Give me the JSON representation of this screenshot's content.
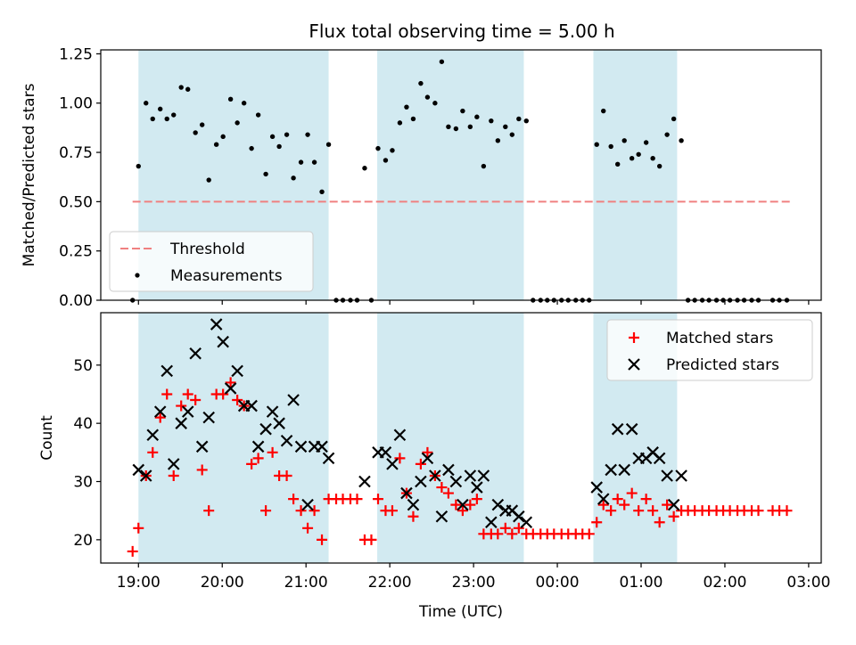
{
  "title": "Flux total observing time = 5.00 h",
  "colors": {
    "band": "#add8e6",
    "threshold": "#f08080",
    "matched": "#ff0000",
    "predicted": "#000000"
  },
  "chart_data": [
    {
      "type": "scatter",
      "panel": "top",
      "title": "Flux total observing time = 5.00 h",
      "xlabel": "",
      "ylabel": "Matched/Predicted stars",
      "xlim": [
        -0.45,
        8.15
      ],
      "ylim": [
        0,
        1.27
      ],
      "yticks": [
        0.0,
        0.25,
        0.5,
        0.75,
        1.0,
        1.25
      ],
      "ytick_labels": [
        "0.00",
        "0.25",
        "0.50",
        "0.75",
        "1.00",
        "1.25"
      ],
      "observing_windows": [
        [
          0.0,
          2.27
        ],
        [
          2.85,
          4.6
        ],
        [
          5.43,
          6.43
        ]
      ],
      "legend": {
        "position": "lower-left",
        "entries": [
          "Threshold",
          "Measurements"
        ]
      },
      "threshold": {
        "name": "Threshold",
        "value": 0.5,
        "x_range": [
          -0.07,
          7.8
        ]
      },
      "series": [
        {
          "name": "Measurements",
          "points": [
            [
              -0.07,
              0.0
            ],
            [
              0.0,
              0.68
            ],
            [
              0.09,
              1.0
            ],
            [
              0.17,
              0.92
            ],
            [
              0.26,
              0.97
            ],
            [
              0.34,
              0.92
            ],
            [
              0.42,
              0.94
            ],
            [
              0.51,
              1.08
            ],
            [
              0.59,
              1.07
            ],
            [
              0.68,
              0.85
            ],
            [
              0.76,
              0.89
            ],
            [
              0.84,
              0.61
            ],
            [
              0.93,
              0.79
            ],
            [
              1.01,
              0.83
            ],
            [
              1.1,
              1.02
            ],
            [
              1.18,
              0.9
            ],
            [
              1.26,
              1.0
            ],
            [
              1.35,
              0.77
            ],
            [
              1.43,
              0.94
            ],
            [
              1.52,
              0.64
            ],
            [
              1.6,
              0.83
            ],
            [
              1.68,
              0.78
            ],
            [
              1.77,
              0.84
            ],
            [
              1.85,
              0.62
            ],
            [
              1.94,
              0.7
            ],
            [
              2.02,
              0.84
            ],
            [
              2.1,
              0.7
            ],
            [
              2.19,
              0.55
            ],
            [
              2.27,
              0.79
            ],
            [
              2.36,
              0.0
            ],
            [
              2.44,
              0.0
            ],
            [
              2.53,
              0.0
            ],
            [
              2.61,
              0.0
            ],
            [
              2.7,
              0.67
            ],
            [
              2.78,
              0.0
            ],
            [
              2.86,
              0.77
            ],
            [
              2.95,
              0.71
            ],
            [
              3.03,
              0.76
            ],
            [
              3.12,
              0.9
            ],
            [
              3.2,
              0.98
            ],
            [
              3.28,
              0.92
            ],
            [
              3.37,
              1.1
            ],
            [
              3.45,
              1.03
            ],
            [
              3.54,
              1.0
            ],
            [
              3.62,
              1.21
            ],
            [
              3.7,
              0.88
            ],
            [
              3.79,
              0.87
            ],
            [
              3.87,
              0.96
            ],
            [
              3.96,
              0.88
            ],
            [
              4.04,
              0.93
            ],
            [
              4.12,
              0.68
            ],
            [
              4.21,
              0.91
            ],
            [
              4.29,
              0.81
            ],
            [
              4.38,
              0.88
            ],
            [
              4.46,
              0.84
            ],
            [
              4.54,
              0.92
            ],
            [
              4.63,
              0.91
            ],
            [
              4.71,
              0.0
            ],
            [
              4.8,
              0.0
            ],
            [
              4.88,
              0.0
            ],
            [
              4.96,
              0.0
            ],
            [
              5.05,
              0.0
            ],
            [
              5.13,
              0.0
            ],
            [
              5.22,
              0.0
            ],
            [
              5.3,
              0.0
            ],
            [
              5.38,
              0.0
            ],
            [
              5.47,
              0.79
            ],
            [
              5.55,
              0.96
            ],
            [
              5.64,
              0.78
            ],
            [
              5.72,
              0.69
            ],
            [
              5.8,
              0.81
            ],
            [
              5.89,
              0.72
            ],
            [
              5.97,
              0.74
            ],
            [
              6.06,
              0.8
            ],
            [
              6.14,
              0.72
            ],
            [
              6.22,
              0.68
            ],
            [
              6.31,
              0.84
            ],
            [
              6.39,
              0.92
            ],
            [
              6.48,
              0.81
            ],
            [
              6.56,
              0.0
            ],
            [
              6.64,
              0.0
            ],
            [
              6.73,
              0.0
            ],
            [
              6.81,
              0.0
            ],
            [
              6.9,
              0.0
            ],
            [
              6.98,
              0.0
            ],
            [
              7.06,
              0.0
            ],
            [
              7.15,
              0.0
            ],
            [
              7.23,
              0.0
            ],
            [
              7.32,
              0.0
            ],
            [
              7.4,
              0.0
            ],
            [
              7.57,
              0.0
            ],
            [
              7.65,
              0.0
            ],
            [
              7.74,
              0.0
            ]
          ]
        }
      ]
    },
    {
      "type": "scatter",
      "panel": "bottom",
      "xlabel": "Time (UTC)",
      "ylabel": "Count",
      "xlim": [
        -0.45,
        8.15
      ],
      "ylim": [
        16,
        59
      ],
      "yticks": [
        20,
        30,
        40,
        50
      ],
      "xticks": [
        0,
        1,
        2,
        3,
        4,
        5,
        6,
        7,
        8
      ],
      "xtick_labels": [
        "19:00",
        "20:00",
        "21:00",
        "22:00",
        "23:00",
        "00:00",
        "01:00",
        "02:00",
        "03:00"
      ],
      "observing_windows": [
        [
          0.0,
          2.27
        ],
        [
          2.85,
          4.6
        ],
        [
          5.43,
          6.43
        ]
      ],
      "legend": {
        "position": "top-right",
        "entries": [
          "Matched stars",
          "Predicted stars"
        ]
      },
      "series": [
        {
          "name": "Matched stars",
          "marker": "+",
          "points": [
            [
              -0.07,
              18
            ],
            [
              0.0,
              22
            ],
            [
              0.09,
              31
            ],
            [
              0.17,
              35
            ],
            [
              0.26,
              41
            ],
            [
              0.34,
              45
            ],
            [
              0.42,
              31
            ],
            [
              0.51,
              43
            ],
            [
              0.59,
              45
            ],
            [
              0.68,
              44
            ],
            [
              0.76,
              32
            ],
            [
              0.84,
              25
            ],
            [
              0.93,
              45
            ],
            [
              1.01,
              45
            ],
            [
              1.1,
              47
            ],
            [
              1.18,
              44
            ],
            [
              1.26,
              43
            ],
            [
              1.35,
              33
            ],
            [
              1.43,
              34
            ],
            [
              1.52,
              25
            ],
            [
              1.6,
              35
            ],
            [
              1.68,
              31
            ],
            [
              1.77,
              31
            ],
            [
              1.85,
              27
            ],
            [
              1.94,
              25
            ],
            [
              2.02,
              22
            ],
            [
              2.1,
              25
            ],
            [
              2.19,
              20
            ],
            [
              2.27,
              27
            ],
            [
              2.36,
              27
            ],
            [
              2.44,
              27
            ],
            [
              2.53,
              27
            ],
            [
              2.61,
              27
            ],
            [
              2.7,
              20
            ],
            [
              2.78,
              20
            ],
            [
              2.86,
              27
            ],
            [
              2.95,
              25
            ],
            [
              3.03,
              25
            ],
            [
              3.12,
              34
            ],
            [
              3.2,
              28
            ],
            [
              3.28,
              24
            ],
            [
              3.37,
              33
            ],
            [
              3.45,
              35
            ],
            [
              3.54,
              31
            ],
            [
              3.62,
              29
            ],
            [
              3.7,
              28
            ],
            [
              3.79,
              26
            ],
            [
              3.87,
              25
            ],
            [
              3.96,
              26
            ],
            [
              4.04,
              27
            ],
            [
              4.12,
              21
            ],
            [
              4.21,
              21
            ],
            [
              4.29,
              21
            ],
            [
              4.38,
              22
            ],
            [
              4.46,
              21
            ],
            [
              4.54,
              22
            ],
            [
              4.63,
              21
            ],
            [
              4.71,
              21
            ],
            [
              4.8,
              21
            ],
            [
              4.88,
              21
            ],
            [
              4.96,
              21
            ],
            [
              5.05,
              21
            ],
            [
              5.13,
              21
            ],
            [
              5.22,
              21
            ],
            [
              5.3,
              21
            ],
            [
              5.38,
              21
            ],
            [
              5.47,
              23
            ],
            [
              5.55,
              26
            ],
            [
              5.64,
              25
            ],
            [
              5.72,
              27
            ],
            [
              5.8,
              26
            ],
            [
              5.89,
              28
            ],
            [
              5.97,
              25
            ],
            [
              6.06,
              27
            ],
            [
              6.14,
              25
            ],
            [
              6.22,
              23
            ],
            [
              6.31,
              26
            ],
            [
              6.39,
              24
            ],
            [
              6.48,
              25
            ],
            [
              6.56,
              25
            ],
            [
              6.64,
              25
            ],
            [
              6.73,
              25
            ],
            [
              6.81,
              25
            ],
            [
              6.9,
              25
            ],
            [
              6.98,
              25
            ],
            [
              7.06,
              25
            ],
            [
              7.15,
              25
            ],
            [
              7.23,
              25
            ],
            [
              7.32,
              25
            ],
            [
              7.4,
              25
            ],
            [
              7.57,
              25
            ],
            [
              7.65,
              25
            ],
            [
              7.74,
              25
            ]
          ]
        },
        {
          "name": "Predicted stars",
          "marker": "x",
          "points": [
            [
              0.0,
              32
            ],
            [
              0.09,
              31
            ],
            [
              0.17,
              38
            ],
            [
              0.26,
              42
            ],
            [
              0.34,
              49
            ],
            [
              0.42,
              33
            ],
            [
              0.51,
              40
            ],
            [
              0.59,
              42
            ],
            [
              0.68,
              52
            ],
            [
              0.76,
              36
            ],
            [
              0.84,
              41
            ],
            [
              0.93,
              57
            ],
            [
              1.01,
              54
            ],
            [
              1.1,
              46
            ],
            [
              1.18,
              49
            ],
            [
              1.26,
              43
            ],
            [
              1.35,
              43
            ],
            [
              1.43,
              36
            ],
            [
              1.52,
              39
            ],
            [
              1.6,
              42
            ],
            [
              1.68,
              40
            ],
            [
              1.77,
              37
            ],
            [
              1.85,
              44
            ],
            [
              1.94,
              36
            ],
            [
              2.02,
              26
            ],
            [
              2.1,
              36
            ],
            [
              2.19,
              36
            ],
            [
              2.27,
              34
            ],
            [
              2.7,
              30
            ],
            [
              2.86,
              35
            ],
            [
              2.95,
              35
            ],
            [
              3.03,
              33
            ],
            [
              3.12,
              38
            ],
            [
              3.2,
              28
            ],
            [
              3.28,
              26
            ],
            [
              3.37,
              30
            ],
            [
              3.45,
              34
            ],
            [
              3.54,
              31
            ],
            [
              3.62,
              24
            ],
            [
              3.7,
              32
            ],
            [
              3.79,
              30
            ],
            [
              3.87,
              26
            ],
            [
              3.96,
              31
            ],
            [
              4.04,
              29
            ],
            [
              4.12,
              31
            ],
            [
              4.21,
              23
            ],
            [
              4.29,
              26
            ],
            [
              4.38,
              25
            ],
            [
              4.46,
              25
            ],
            [
              4.54,
              24
            ],
            [
              4.63,
              23
            ],
            [
              5.47,
              29
            ],
            [
              5.55,
              27
            ],
            [
              5.64,
              32
            ],
            [
              5.72,
              39
            ],
            [
              5.8,
              32
            ],
            [
              5.89,
              39
            ],
            [
              5.97,
              34
            ],
            [
              6.06,
              34
            ],
            [
              6.14,
              35
            ],
            [
              6.22,
              34
            ],
            [
              6.31,
              31
            ],
            [
              6.39,
              26
            ],
            [
              6.48,
              31
            ]
          ]
        }
      ]
    }
  ]
}
